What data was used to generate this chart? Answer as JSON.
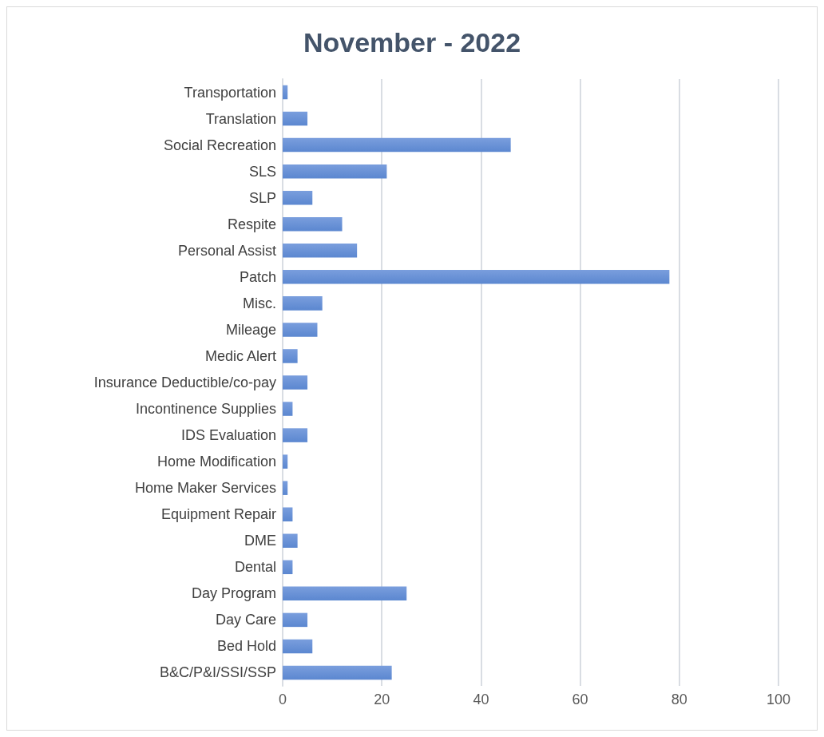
{
  "chart_data": {
    "type": "bar",
    "orientation": "horizontal",
    "title": "November - 2022",
    "categories": [
      "Transportation",
      "Translation",
      "Social Recreation",
      "SLS",
      "SLP",
      "Respite",
      "Personal Assist",
      "Patch",
      "Misc.",
      "Mileage",
      "Medic Alert",
      "Insurance Deductible/co-pay",
      "Incontinence Supplies",
      "IDS Evaluation",
      "Home Modification",
      "Home Maker Services",
      "Equipment Repair",
      "DME",
      "Dental",
      "Day Program",
      "Day Care",
      "Bed Hold",
      "B&C/P&I/SSI/SSP"
    ],
    "values": [
      1,
      5,
      46,
      21,
      6,
      12,
      15,
      78,
      8,
      7,
      3,
      5,
      2,
      5,
      1,
      1,
      2,
      3,
      2,
      25,
      5,
      6,
      22
    ],
    "color": "#5b87d0",
    "xlim": [
      0,
      100
    ],
    "xticks": [
      0,
      20,
      40,
      60,
      80,
      100
    ],
    "grid": "x"
  }
}
